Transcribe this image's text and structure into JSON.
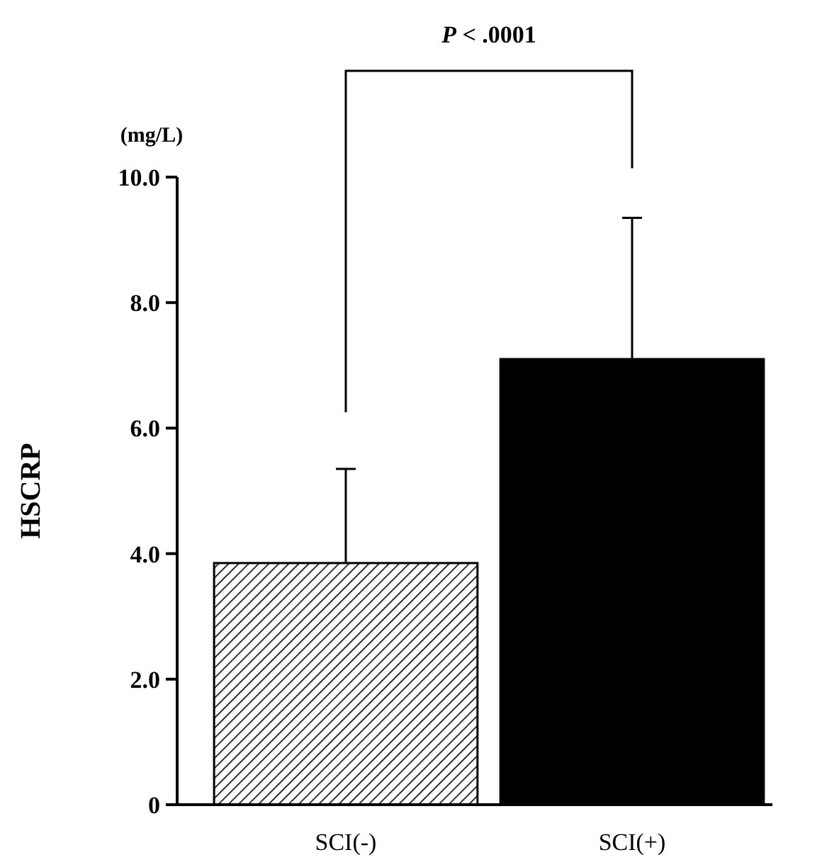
{
  "chart_data": {
    "type": "bar",
    "ylabel": "HSCRP",
    "categories": [
      "SCI(-)",
      "SCI(+)"
    ],
    "values": [
      3.85,
      7.1
    ],
    "colors": [
      "#000000",
      "#000000"
    ],
    "errors": [
      [
        3.85,
        5.35
      ],
      [
        7.1,
        9.35
      ]
    ],
    "ylim": [
      0,
      10
    ],
    "yticks": [
      0,
      {
        "value": 2,
        "label": "2.0"
      },
      {
        "value": 4,
        "label": "4.0"
      },
      {
        "value": 6,
        "label": "6.0"
      },
      {
        "value": 8,
        "label": "8.0"
      },
      {
        "value": 10,
        "label": "10.0"
      }
    ],
    "annotations": [
      "P < .0001",
      "(mg/L)"
    ],
    "grid": false
  }
}
